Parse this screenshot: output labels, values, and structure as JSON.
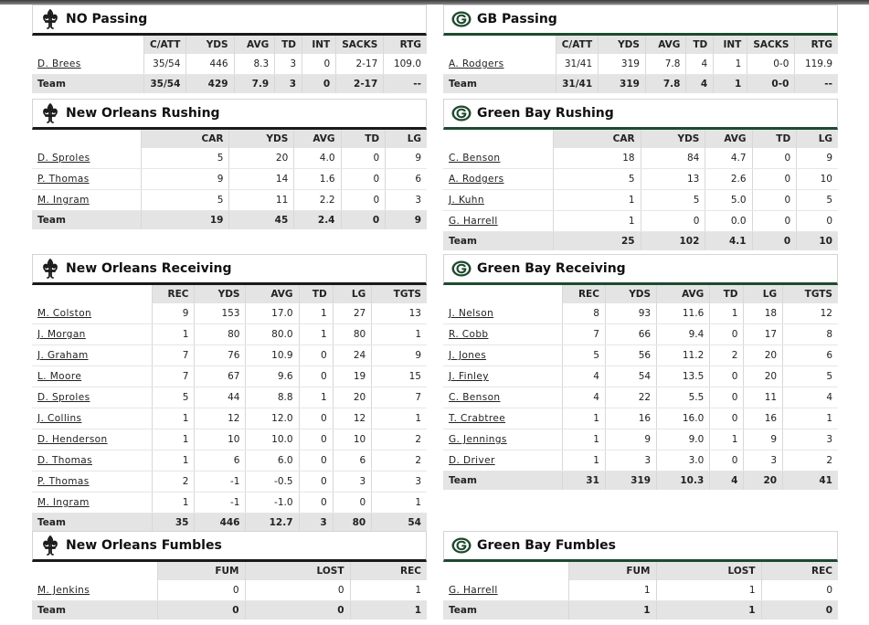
{
  "colors": {
    "saints_rule": "#1a1a1a",
    "packers_rule": "#1e4a2e",
    "header_bg": "#e4e4e4"
  },
  "no_passing": {
    "title": "NO Passing",
    "columns": [
      "C/ATT",
      "YDS",
      "AVG",
      "TD",
      "INT",
      "SACKS",
      "RTG"
    ],
    "rows": [
      {
        "name": "D. Brees",
        "vals": [
          "35/54",
          "446",
          "8.3",
          "3",
          "0",
          "2-17",
          "109.0"
        ]
      }
    ],
    "team": {
      "name": "Team",
      "vals": [
        "35/54",
        "429",
        "7.9",
        "3",
        "0",
        "2-17",
        "--"
      ]
    }
  },
  "gb_passing": {
    "title": "GB Passing",
    "columns": [
      "C/ATT",
      "YDS",
      "AVG",
      "TD",
      "INT",
      "SACKS",
      "RTG"
    ],
    "rows": [
      {
        "name": "A. Rodgers",
        "vals": [
          "31/41",
          "319",
          "7.8",
          "4",
          "1",
          "0-0",
          "119.9"
        ]
      }
    ],
    "team": {
      "name": "Team",
      "vals": [
        "31/41",
        "319",
        "7.8",
        "4",
        "1",
        "0-0",
        "--"
      ]
    }
  },
  "no_rushing": {
    "title": "New Orleans Rushing",
    "columns": [
      "CAR",
      "YDS",
      "AVG",
      "TD",
      "LG"
    ],
    "rows": [
      {
        "name": "D. Sproles",
        "vals": [
          "5",
          "20",
          "4.0",
          "0",
          "9"
        ]
      },
      {
        "name": "P. Thomas",
        "vals": [
          "9",
          "14",
          "1.6",
          "0",
          "6"
        ]
      },
      {
        "name": "M. Ingram",
        "vals": [
          "5",
          "11",
          "2.2",
          "0",
          "3"
        ]
      }
    ],
    "team": {
      "name": "Team",
      "vals": [
        "19",
        "45",
        "2.4",
        "0",
        "9"
      ]
    }
  },
  "gb_rushing": {
    "title": "Green Bay Rushing",
    "columns": [
      "CAR",
      "YDS",
      "AVG",
      "TD",
      "LG"
    ],
    "rows": [
      {
        "name": "C. Benson",
        "vals": [
          "18",
          "84",
          "4.7",
          "0",
          "9"
        ]
      },
      {
        "name": "A. Rodgers",
        "vals": [
          "5",
          "13",
          "2.6",
          "0",
          "10"
        ]
      },
      {
        "name": "J. Kuhn",
        "vals": [
          "1",
          "5",
          "5.0",
          "0",
          "5"
        ]
      },
      {
        "name": "G. Harrell",
        "vals": [
          "1",
          "0",
          "0.0",
          "0",
          "0"
        ]
      }
    ],
    "team": {
      "name": "Team",
      "vals": [
        "25",
        "102",
        "4.1",
        "0",
        "10"
      ]
    }
  },
  "no_receiving": {
    "title": "New Orleans Receiving",
    "columns": [
      "REC",
      "YDS",
      "AVG",
      "TD",
      "LG",
      "TGTS"
    ],
    "rows": [
      {
        "name": "M. Colston",
        "vals": [
          "9",
          "153",
          "17.0",
          "1",
          "27",
          "13"
        ]
      },
      {
        "name": "J. Morgan",
        "vals": [
          "1",
          "80",
          "80.0",
          "1",
          "80",
          "1"
        ]
      },
      {
        "name": "J. Graham",
        "vals": [
          "7",
          "76",
          "10.9",
          "0",
          "24",
          "9"
        ]
      },
      {
        "name": "L. Moore",
        "vals": [
          "7",
          "67",
          "9.6",
          "0",
          "19",
          "15"
        ]
      },
      {
        "name": "D. Sproles",
        "vals": [
          "5",
          "44",
          "8.8",
          "1",
          "20",
          "7"
        ]
      },
      {
        "name": "J. Collins",
        "vals": [
          "1",
          "12",
          "12.0",
          "0",
          "12",
          "1"
        ]
      },
      {
        "name": "D. Henderson",
        "vals": [
          "1",
          "10",
          "10.0",
          "0",
          "10",
          "2"
        ]
      },
      {
        "name": "D. Thomas",
        "vals": [
          "1",
          "6",
          "6.0",
          "0",
          "6",
          "2"
        ]
      },
      {
        "name": "P. Thomas",
        "vals": [
          "2",
          "-1",
          "-0.5",
          "0",
          "3",
          "3"
        ]
      },
      {
        "name": "M. Ingram",
        "vals": [
          "1",
          "-1",
          "-1.0",
          "0",
          "0",
          "1"
        ]
      }
    ],
    "team": {
      "name": "Team",
      "vals": [
        "35",
        "446",
        "12.7",
        "3",
        "80",
        "54"
      ]
    }
  },
  "gb_receiving": {
    "title": "Green Bay Receiving",
    "columns": [
      "REC",
      "YDS",
      "AVG",
      "TD",
      "LG",
      "TGTS"
    ],
    "rows": [
      {
        "name": "J. Nelson",
        "vals": [
          "8",
          "93",
          "11.6",
          "1",
          "18",
          "12"
        ]
      },
      {
        "name": "R. Cobb",
        "vals": [
          "7",
          "66",
          "9.4",
          "0",
          "17",
          "8"
        ]
      },
      {
        "name": "J. Jones",
        "vals": [
          "5",
          "56",
          "11.2",
          "2",
          "20",
          "6"
        ]
      },
      {
        "name": "J. Finley",
        "vals": [
          "4",
          "54",
          "13.5",
          "0",
          "20",
          "5"
        ]
      },
      {
        "name": "C. Benson",
        "vals": [
          "4",
          "22",
          "5.5",
          "0",
          "11",
          "4"
        ]
      },
      {
        "name": "T. Crabtree",
        "vals": [
          "1",
          "16",
          "16.0",
          "0",
          "16",
          "1"
        ]
      },
      {
        "name": "G. Jennings",
        "vals": [
          "1",
          "9",
          "9.0",
          "1",
          "9",
          "3"
        ]
      },
      {
        "name": "D. Driver",
        "vals": [
          "1",
          "3",
          "3.0",
          "0",
          "3",
          "2"
        ]
      }
    ],
    "team": {
      "name": "Team",
      "vals": [
        "31",
        "319",
        "10.3",
        "4",
        "20",
        "41"
      ]
    }
  },
  "no_fumbles": {
    "title": "New Orleans Fumbles",
    "columns": [
      "FUM",
      "LOST",
      "REC"
    ],
    "rows": [
      {
        "name": "M. Jenkins",
        "vals": [
          "0",
          "0",
          "1"
        ]
      }
    ],
    "team": {
      "name": "Team",
      "vals": [
        "0",
        "0",
        "1"
      ]
    }
  },
  "gb_fumbles": {
    "title": "Green Bay Fumbles",
    "columns": [
      "FUM",
      "LOST",
      "REC"
    ],
    "rows": [
      {
        "name": "G. Harrell",
        "vals": [
          "1",
          "1",
          "0"
        ]
      }
    ],
    "team": {
      "name": "Team",
      "vals": [
        "1",
        "1",
        "0"
      ]
    }
  }
}
